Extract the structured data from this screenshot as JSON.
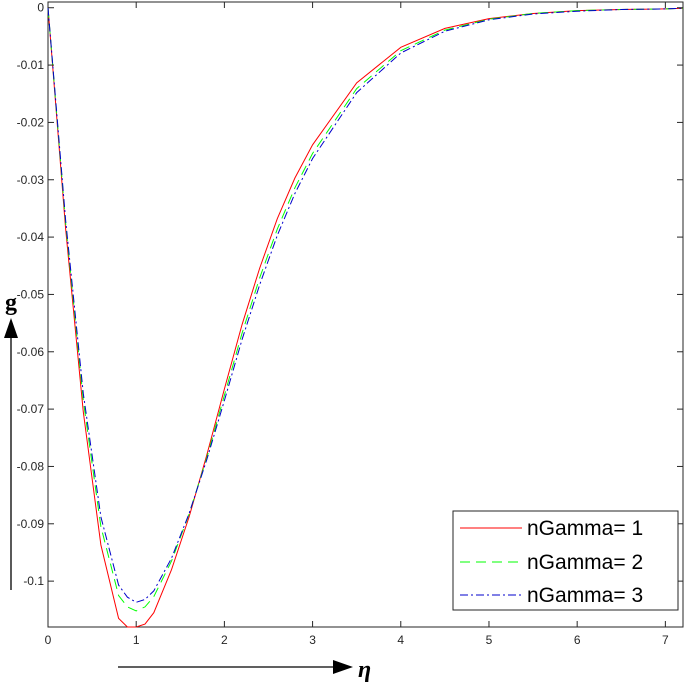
{
  "chart_data": {
    "type": "line",
    "title": "",
    "xlabel": "η",
    "ylabel": "g",
    "xlim": [
      0,
      7.2
    ],
    "ylim": [
      -0.108,
      0.001
    ],
    "xticks": [
      0,
      1,
      2,
      3,
      4,
      5,
      6,
      7
    ],
    "xtick_labels": [
      "0",
      "1",
      "2",
      "3",
      "4",
      "5",
      "6",
      "7"
    ],
    "yticks": [
      0,
      -0.01,
      -0.02,
      -0.03,
      -0.04,
      -0.05,
      -0.06,
      -0.07,
      -0.08,
      -0.09,
      -0.1
    ],
    "ytick_labels": [
      "0",
      "-0.01",
      "-0.02",
      "-0.03",
      "-0.04",
      "-0.05",
      "-0.06",
      "-0.07",
      "-0.08",
      "-0.09",
      "-0.1"
    ],
    "grid": false,
    "legend_position": "bottom-right",
    "series": [
      {
        "name": "nGamma= 1",
        "color": "#ff0000",
        "style": "solid",
        "x": [
          0,
          0.2,
          0.4,
          0.6,
          0.8,
          0.9,
          1.0,
          1.1,
          1.2,
          1.4,
          1.6,
          1.8,
          2.0,
          2.2,
          2.4,
          2.6,
          2.8,
          3.0,
          3.5,
          4.0,
          4.5,
          5.0,
          5.5,
          6.0,
          6.5,
          7.0,
          7.2
        ],
        "y": [
          0,
          -0.0385,
          -0.0705,
          -0.0937,
          -0.1065,
          -0.109,
          -0.1085,
          -0.1075,
          -0.1055,
          -0.098,
          -0.0888,
          -0.078,
          -0.0665,
          -0.0553,
          -0.0454,
          -0.0368,
          -0.0297,
          -0.0239,
          -0.0131,
          -0.0069,
          -0.0036,
          -0.0019,
          -0.001,
          -0.0005,
          -0.0003,
          -0.0002,
          -0.0001
        ]
      },
      {
        "name": "nGamma= 2",
        "color": "#00ff00",
        "style": "dashed",
        "x": [
          0,
          0.2,
          0.4,
          0.6,
          0.8,
          0.9,
          1.0,
          1.1,
          1.2,
          1.4,
          1.6,
          1.8,
          2.0,
          2.2,
          2.4,
          2.6,
          2.8,
          3.0,
          3.5,
          4.0,
          4.5,
          5.0,
          5.5,
          6.0,
          6.5,
          7.0,
          7.2
        ],
        "y": [
          0,
          -0.0375,
          -0.0685,
          -0.0905,
          -0.1025,
          -0.1045,
          -0.1052,
          -0.1045,
          -0.1027,
          -0.0965,
          -0.0883,
          -0.0785,
          -0.0676,
          -0.0568,
          -0.0471,
          -0.0386,
          -0.0314,
          -0.0254,
          -0.0141,
          -0.0075,
          -0.0039,
          -0.002,
          -0.001,
          -0.0005,
          -0.0003,
          -0.0002,
          -0.0001
        ]
      },
      {
        "name": "nGamma= 3",
        "color": "#0000cc",
        "style": "dashdot",
        "x": [
          0,
          0.2,
          0.4,
          0.6,
          0.8,
          0.9,
          1.0,
          1.1,
          1.2,
          1.4,
          1.6,
          1.8,
          2.0,
          2.2,
          2.4,
          2.6,
          2.8,
          3.0,
          3.5,
          4.0,
          4.5,
          5.0,
          5.5,
          6.0,
          6.5,
          7.0,
          7.2
        ],
        "y": [
          0,
          -0.037,
          -0.0673,
          -0.0888,
          -0.1007,
          -0.1028,
          -0.1037,
          -0.1032,
          -0.1017,
          -0.096,
          -0.0882,
          -0.0788,
          -0.0685,
          -0.0579,
          -0.0483,
          -0.0397,
          -0.0324,
          -0.0263,
          -0.0148,
          -0.0079,
          -0.0041,
          -0.0021,
          -0.0011,
          -0.0006,
          -0.0003,
          -0.0002,
          -0.0001
        ]
      }
    ]
  }
}
